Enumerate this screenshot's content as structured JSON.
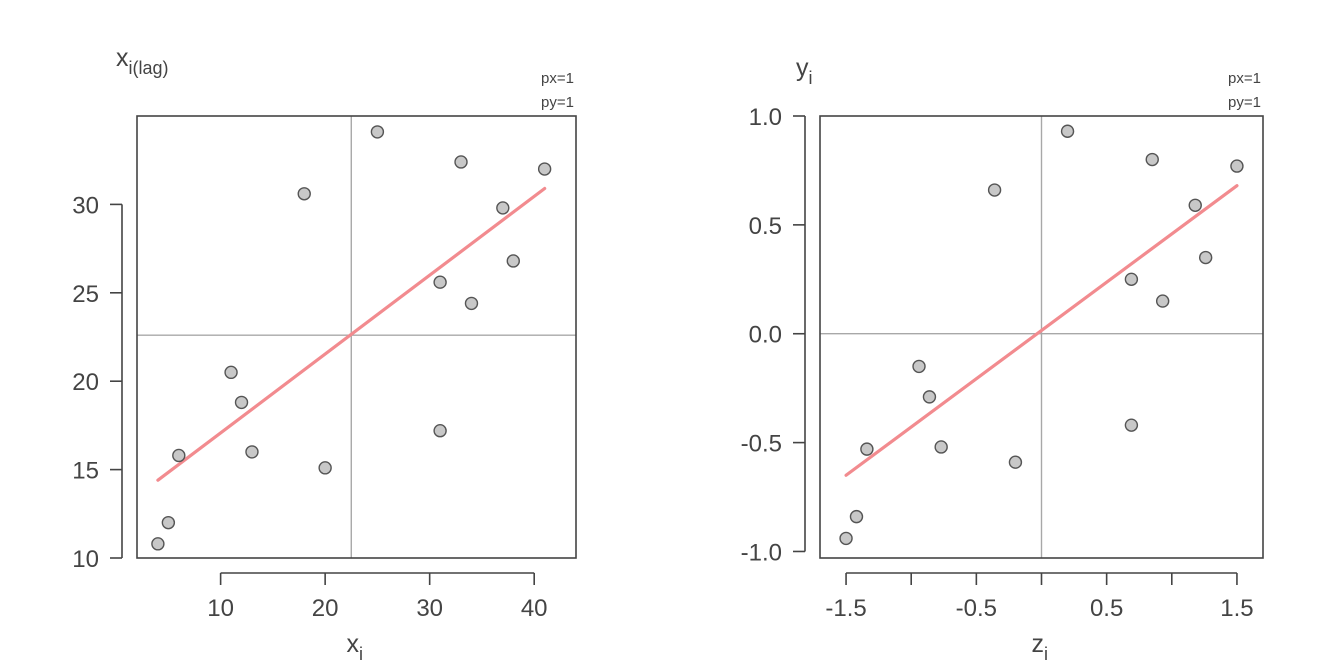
{
  "chart_data": [
    {
      "type": "scatter",
      "title": "",
      "xlabel": "x",
      "xlabel_sub": "i",
      "ylabel": "x",
      "ylabel_sub": "i(lag)",
      "corner_labels": [
        "px=1",
        "py=1"
      ],
      "xlim": [
        2,
        44
      ],
      "ylim": [
        10,
        35
      ],
      "xticks": [
        10,
        20,
        30,
        40
      ],
      "xtick_labels": [
        "10",
        "20",
        "30",
        "40"
      ],
      "yticks": [
        10,
        15,
        20,
        25,
        30
      ],
      "ytick_labels": [
        "10",
        "15",
        "20",
        "25",
        "30"
      ],
      "mean_x": 22.5,
      "mean_y": 22.6,
      "points": [
        {
          "x": 4,
          "y": 10.8
        },
        {
          "x": 5,
          "y": 12.0
        },
        {
          "x": 6,
          "y": 15.8
        },
        {
          "x": 11,
          "y": 20.5
        },
        {
          "x": 12,
          "y": 18.8
        },
        {
          "x": 13,
          "y": 16.0
        },
        {
          "x": 18,
          "y": 30.6
        },
        {
          "x": 20,
          "y": 15.1
        },
        {
          "x": 25,
          "y": 34.1
        },
        {
          "x": 31,
          "y": 25.6
        },
        {
          "x": 31,
          "y": 17.2
        },
        {
          "x": 33,
          "y": 32.4
        },
        {
          "x": 34,
          "y": 24.4
        },
        {
          "x": 37,
          "y": 29.8
        },
        {
          "x": 38,
          "y": 26.8
        },
        {
          "x": 41,
          "y": 32.0
        }
      ],
      "fit_line": {
        "x": [
          4,
          41
        ],
        "y": [
          14.4,
          30.9
        ]
      },
      "point_color": "#c8c8c8",
      "line_color": "#f28b8f"
    },
    {
      "type": "scatter",
      "title": "",
      "xlabel": "z",
      "xlabel_sub": "i",
      "ylabel": "y",
      "ylabel_sub": "i",
      "corner_labels": [
        "px=1",
        "py=1"
      ],
      "xlim": [
        -1.7,
        1.7
      ],
      "ylim": [
        -1.03,
        1.0
      ],
      "xticks": [
        -1.5,
        -1.0,
        -0.5,
        0.0,
        0.5,
        1.0,
        1.5
      ],
      "xtick_labels": [
        "-1.5",
        "",
        "-0.5",
        "",
        "0.5",
        "",
        "1.5"
      ],
      "yticks": [
        -1.0,
        -0.5,
        0.0,
        0.5,
        1.0
      ],
      "ytick_labels": [
        "-1.0",
        "-0.5",
        "0.0",
        "0.5",
        "1.0"
      ],
      "mean_x": 0.0,
      "mean_y": 0.0,
      "points": [
        {
          "x": -1.5,
          "y": -0.94
        },
        {
          "x": -1.42,
          "y": -0.84
        },
        {
          "x": -1.34,
          "y": -0.53
        },
        {
          "x": -0.94,
          "y": -0.15
        },
        {
          "x": -0.86,
          "y": -0.29
        },
        {
          "x": -0.77,
          "y": -0.52
        },
        {
          "x": -0.36,
          "y": 0.66
        },
        {
          "x": -0.2,
          "y": -0.59
        },
        {
          "x": 0.2,
          "y": 0.93
        },
        {
          "x": 0.69,
          "y": 0.25
        },
        {
          "x": 0.69,
          "y": -0.42
        },
        {
          "x": 0.85,
          "y": 0.8
        },
        {
          "x": 0.93,
          "y": 0.15
        },
        {
          "x": 1.18,
          "y": 0.59
        },
        {
          "x": 1.26,
          "y": 0.35
        },
        {
          "x": 1.5,
          "y": 0.77
        }
      ],
      "fit_line": {
        "x": [
          -1.5,
          1.5
        ],
        "y": [
          -0.65,
          0.68
        ]
      },
      "point_color": "#c8c8c8",
      "line_color": "#f28b8f"
    }
  ]
}
